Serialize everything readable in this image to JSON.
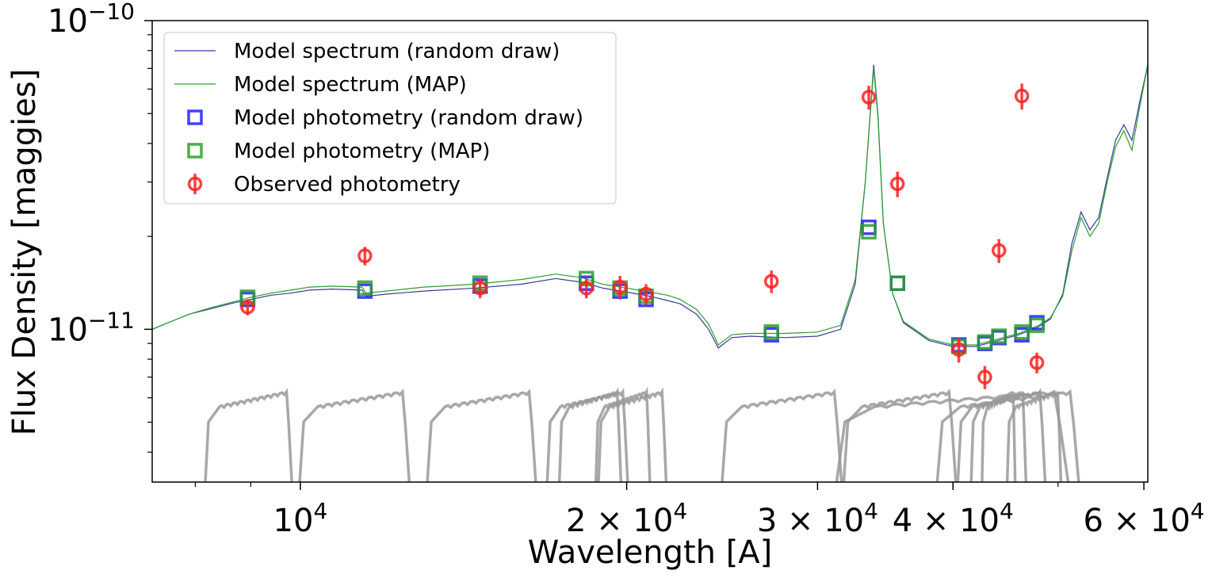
{
  "chart_data": {
    "type": "line",
    "xlabel": "Wavelength [A]",
    "ylabel": "Flux Density [maggies]",
    "xscale": "log",
    "yscale": "log",
    "xlim": [
      7300,
      60500
    ],
    "ylim": [
      3.2e-12,
      1e-10
    ],
    "grid": false,
    "legend_position": "top-left",
    "x_ticks": [
      {
        "value": 10000,
        "base": "10",
        "exp": "4"
      },
      {
        "value": 20000,
        "base": "2 × 10",
        "exp": "4"
      },
      {
        "value": 30000,
        "base": "3 × 10",
        "exp": "4"
      },
      {
        "value": 40000,
        "base": "4 × 10",
        "exp": "4"
      },
      {
        "value": 60000,
        "base": "6 × 10",
        "exp": "4"
      }
    ],
    "x_minor_ticks": [
      8000,
      9000,
      50000
    ],
    "y_ticks": [
      {
        "value": 1e-11,
        "base": "10",
        "exp": "−11"
      },
      {
        "value": 1e-10,
        "base": "10",
        "exp": "−10"
      }
    ],
    "colors": {
      "spectrum_random": "#3a3aa0",
      "spectrum_map": "#2ca02c",
      "phot_random": "#2020ff",
      "phot_map": "#2ca02c",
      "observed": "#ff2020",
      "filters": "#999999"
    },
    "legend": [
      {
        "label": "Model spectrum (random draw)",
        "kind": "line",
        "color": "#3a3aa0"
      },
      {
        "label": "Model spectrum (MAP)",
        "kind": "line",
        "color": "#2ca02c"
      },
      {
        "label": "Model photometry (random draw)",
        "kind": "square",
        "color": "#2020ff"
      },
      {
        "label": "Model photometry (MAP)",
        "kind": "square",
        "color": "#2ca02c"
      },
      {
        "label": "Observed photometry",
        "kind": "circle-err",
        "color": "#ff2020"
      }
    ],
    "series": [
      {
        "name": "Model spectrum (random draw)",
        "kind": "line",
        "x": [
          7300,
          7600,
          7900,
          8300,
          8700,
          9000,
          9400,
          9800,
          10200,
          10700,
          11400,
          11500,
          12000,
          13000,
          14500,
          16000,
          17200,
          18200,
          19000,
          20000,
          21000,
          21800,
          22400,
          23200,
          23800,
          24300,
          25000,
          26000,
          28000,
          30000,
          31500,
          32500,
          33200,
          33800,
          34100,
          34500,
          35200,
          36000,
          38000,
          40000,
          42000,
          44000,
          46000,
          48000,
          49200,
          50500,
          51500,
          52500,
          53500,
          54500,
          55500,
          56500,
          57500,
          58500,
          59500,
          60500
        ],
        "y": [
          1e-11,
          1.06e-11,
          1.12e-11,
          1.17e-11,
          1.22e-11,
          1.25e-11,
          1.29e-11,
          1.31e-11,
          1.34e-11,
          1.35e-11,
          1.34e-11,
          1.28e-11,
          1.3e-11,
          1.33e-11,
          1.36e-11,
          1.4e-11,
          1.46e-11,
          1.42e-11,
          1.36e-11,
          1.32e-11,
          1.28e-11,
          1.24e-11,
          1.21e-11,
          1.12e-11,
          1e-11,
          8.7e-12,
          9.4e-12,
          9.5e-12,
          9.4e-12,
          9.5e-12,
          1e-11,
          1.4e-11,
          3e-11,
          7.2e-11,
          5e-11,
          2.2e-11,
          1.3e-11,
          1.05e-11,
          9.2e-12,
          8.8e-12,
          8.8e-12,
          9.2e-12,
          9.6e-12,
          1.02e-11,
          1.08e-11,
          1.3e-11,
          1.9e-11,
          2.4e-11,
          2.1e-11,
          2.3e-11,
          3.1e-11,
          4.1e-11,
          4.6e-11,
          4.1e-11,
          5.5e-11,
          7.2e-11
        ]
      },
      {
        "name": "Model spectrum (MAP)",
        "kind": "line",
        "x": [
          7300,
          7600,
          7900,
          8300,
          8700,
          9000,
          9400,
          9800,
          10200,
          10700,
          11400,
          11500,
          12000,
          13000,
          14500,
          16000,
          17200,
          18200,
          19000,
          20000,
          21000,
          21800,
          22400,
          23200,
          23800,
          24300,
          25000,
          26000,
          28000,
          30000,
          31500,
          32500,
          33200,
          33800,
          34100,
          34500,
          35200,
          36000,
          38000,
          40000,
          42000,
          44000,
          46000,
          48000,
          49200,
          50500,
          51500,
          52500,
          53500,
          54500,
          55500,
          56500,
          57500,
          58500,
          59500,
          60500
        ],
        "y": [
          1e-11,
          1.06e-11,
          1.12e-11,
          1.18e-11,
          1.23e-11,
          1.27e-11,
          1.31e-11,
          1.34e-11,
          1.37e-11,
          1.38e-11,
          1.37e-11,
          1.31e-11,
          1.33e-11,
          1.37e-11,
          1.4e-11,
          1.45e-11,
          1.51e-11,
          1.47e-11,
          1.4e-11,
          1.36e-11,
          1.32e-11,
          1.29e-11,
          1.25e-11,
          1.16e-11,
          1.04e-11,
          8.9e-12,
          9.6e-12,
          9.7e-12,
          9.7e-12,
          9.8e-12,
          1.03e-11,
          1.45e-11,
          3e-11,
          7e-11,
          4.9e-11,
          2.2e-11,
          1.3e-11,
          1.06e-11,
          9.3e-12,
          8.9e-12,
          8.9e-12,
          9.3e-12,
          9.7e-12,
          1.03e-11,
          1.09e-11,
          1.28e-11,
          1.8e-11,
          2.3e-11,
          2e-11,
          2.2e-11,
          3e-11,
          3.9e-11,
          4.4e-11,
          3.8e-11,
          5.3e-11,
          7.2e-11
        ]
      },
      {
        "name": "Model photometry (random draw)",
        "kind": "square",
        "x": [
          8940,
          11470,
          14650,
          18360,
          19720,
          20840,
          27200,
          33450,
          35550,
          40500,
          42800,
          44100,
          46300,
          47800
        ],
        "y": [
          1.25e-11,
          1.33e-11,
          1.38e-11,
          1.41e-11,
          1.33e-11,
          1.25e-11,
          9.6e-12,
          2.14e-11,
          1.41e-11,
          8.9e-12,
          9e-12,
          9.4e-12,
          9.6e-12,
          1.05e-11
        ]
      },
      {
        "name": "Model photometry (MAP)",
        "kind": "square",
        "x": [
          8940,
          11470,
          14650,
          18360,
          19720,
          20840,
          27200,
          33450,
          35550,
          40500,
          42800,
          44100,
          46300,
          47800
        ],
        "y": [
          1.27e-11,
          1.36e-11,
          1.41e-11,
          1.46e-11,
          1.36e-11,
          1.28e-11,
          9.8e-12,
          2.07e-11,
          1.41e-11,
          8.8e-12,
          9.1e-12,
          9.5e-12,
          9.8e-12,
          1.03e-11
        ]
      },
      {
        "name": "Observed photometry",
        "kind": "errorbar",
        "x": [
          8940,
          11470,
          14650,
          18360,
          19720,
          20840,
          27200,
          33450,
          35550,
          40500,
          42800,
          44100,
          46300,
          47800
        ],
        "y": [
          1.18e-11,
          1.73e-11,
          1.36e-11,
          1.36e-11,
          1.37e-11,
          1.3e-11,
          1.43e-11,
          5.65e-11,
          2.96e-11,
          8.6e-12,
          7e-12,
          1.8e-11,
          5.7e-11,
          7.8e-12
        ],
        "yerr": [
          7e-13,
          1.2e-12,
          1e-12,
          1e-12,
          1.2e-12,
          1e-12,
          1.2e-12,
          5e-12,
          2.8e-12,
          8e-13,
          6e-13,
          1.6e-12,
          5.5e-12,
          6e-13
        ]
      }
    ],
    "filter_curves": [
      {
        "lo": 8150,
        "hi": 9850
      },
      {
        "lo": 9950,
        "hi": 12650
      },
      {
        "lo": 13050,
        "hi": 16550
      },
      {
        "lo": 16850,
        "hi": 20100
      },
      {
        "lo": 17300,
        "hi": 19800
      },
      {
        "lo": 18700,
        "hi": 21050
      },
      {
        "lo": 18800,
        "hi": 21800
      },
      {
        "lo": 24400,
        "hi": 31700
      },
      {
        "lo": 31000,
        "hi": 51500
      },
      {
        "lo": 31600,
        "hi": 40400
      },
      {
        "lo": 38500,
        "hi": 52500
      },
      {
        "lo": 40300,
        "hi": 48800
      },
      {
        "lo": 41500,
        "hi": 46800
      },
      {
        "lo": 42500,
        "hi": 45700
      },
      {
        "lo": 44800,
        "hi": 50400
      }
    ]
  }
}
